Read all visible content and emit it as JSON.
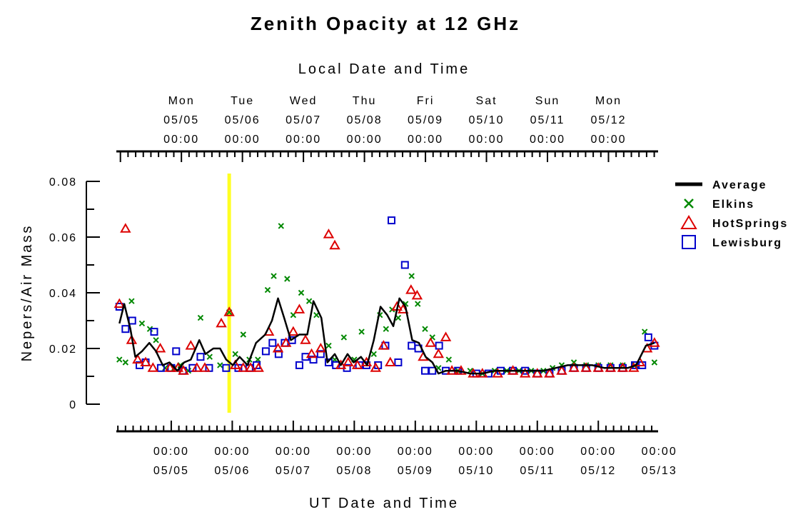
{
  "chart_data": {
    "type": "scatter",
    "title": "Zenith Opacity at 12 GHz",
    "top_axis_label": "Local Date and Time",
    "xlabel": "UT Date and Time",
    "ylabel": "Nepers/Air Mass",
    "ylim": [
      0,
      0.08
    ],
    "y_ticks": [
      "0",
      "0.02",
      "0.04",
      "0.06",
      "0.08"
    ],
    "x_range_days": [
      4.1,
      12.98
    ],
    "top_axis_ticks": [
      {
        "day": "Mon",
        "date": "05/05",
        "time": "00:00"
      },
      {
        "day": "Tue",
        "date": "05/06",
        "time": "00:00"
      },
      {
        "day": "Wed",
        "date": "05/07",
        "time": "00:00"
      },
      {
        "day": "Thu",
        "date": "05/08",
        "time": "00:00"
      },
      {
        "day": "Fri",
        "date": "05/09",
        "time": "00:00"
      },
      {
        "day": "Sat",
        "date": "05/10",
        "time": "00:00"
      },
      {
        "day": "Sun",
        "date": "05/11",
        "time": "00:00"
      },
      {
        "day": "Mon",
        "date": "05/12",
        "time": "00:00"
      }
    ],
    "bottom_axis_ticks": [
      {
        "time": "00:00",
        "date": "05/05"
      },
      {
        "time": "00:00",
        "date": "05/06"
      },
      {
        "time": "00:00",
        "date": "05/07"
      },
      {
        "time": "00:00",
        "date": "05/08"
      },
      {
        "time": "00:00",
        "date": "05/09"
      },
      {
        "time": "00:00",
        "date": "05/10"
      },
      {
        "time": "00:00",
        "date": "05/11"
      },
      {
        "time": "00:00",
        "date": "05/12"
      },
      {
        "time": "00:00",
        "date": "05/13"
      }
    ],
    "marker_line_day": 5.95,
    "marker_line_color": "#ffff22",
    "legend_position": "right",
    "series": [
      {
        "name": "Average",
        "style": "line",
        "color": "#000000",
        "points": [
          [
            4.15,
            0.029
          ],
          [
            4.23,
            0.036
          ],
          [
            4.33,
            0.027
          ],
          [
            4.41,
            0.017
          ],
          [
            4.52,
            0.019
          ],
          [
            4.64,
            0.022
          ],
          [
            4.75,
            0.019
          ],
          [
            4.86,
            0.014
          ],
          [
            4.97,
            0.015
          ],
          [
            5.1,
            0.012
          ],
          [
            5.21,
            0.015
          ],
          [
            5.32,
            0.016
          ],
          [
            5.46,
            0.023
          ],
          [
            5.56,
            0.018
          ],
          [
            5.69,
            0.02
          ],
          [
            5.8,
            0.02
          ],
          [
            5.9,
            0.016
          ],
          [
            6.01,
            0.014
          ],
          [
            6.12,
            0.017
          ],
          [
            6.25,
            0.014
          ],
          [
            6.39,
            0.022
          ],
          [
            6.54,
            0.025
          ],
          [
            6.65,
            0.03
          ],
          [
            6.75,
            0.038
          ],
          [
            6.85,
            0.031
          ],
          [
            6.96,
            0.023
          ],
          [
            7.1,
            0.025
          ],
          [
            7.23,
            0.025
          ],
          [
            7.33,
            0.037
          ],
          [
            7.46,
            0.031
          ],
          [
            7.56,
            0.015
          ],
          [
            7.68,
            0.018
          ],
          [
            7.78,
            0.014
          ],
          [
            7.89,
            0.018
          ],
          [
            7.99,
            0.015
          ],
          [
            8.11,
            0.017
          ],
          [
            8.21,
            0.014
          ],
          [
            8.32,
            0.023
          ],
          [
            8.43,
            0.035
          ],
          [
            8.54,
            0.032
          ],
          [
            8.64,
            0.028
          ],
          [
            8.74,
            0.038
          ],
          [
            8.84,
            0.035
          ],
          [
            8.95,
            0.023
          ],
          [
            9.06,
            0.022
          ],
          [
            9.17,
            0.017
          ],
          [
            9.28,
            0.015
          ],
          [
            9.38,
            0.011
          ],
          [
            9.5,
            0.012
          ],
          [
            9.7,
            0.012
          ],
          [
            9.9,
            0.011
          ],
          [
            10.1,
            0.011
          ],
          [
            10.3,
            0.012
          ],
          [
            10.5,
            0.012
          ],
          [
            10.7,
            0.012
          ],
          [
            10.9,
            0.012
          ],
          [
            11.1,
            0.012
          ],
          [
            11.3,
            0.013
          ],
          [
            11.5,
            0.014
          ],
          [
            11.7,
            0.014
          ],
          [
            11.9,
            0.014
          ],
          [
            12.1,
            0.013
          ],
          [
            12.3,
            0.013
          ],
          [
            12.48,
            0.013
          ],
          [
            12.62,
            0.014
          ],
          [
            12.78,
            0.021
          ],
          [
            12.92,
            0.022
          ]
        ]
      },
      {
        "name": "Elkins",
        "style": "x",
        "color": "#008800",
        "points": [
          [
            4.15,
            0.016
          ],
          [
            4.25,
            0.015
          ],
          [
            4.35,
            0.037
          ],
          [
            4.52,
            0.029
          ],
          [
            4.65,
            0.027
          ],
          [
            4.75,
            0.023
          ],
          [
            4.9,
            0.013
          ],
          [
            5.05,
            0.013
          ],
          [
            5.15,
            0.014
          ],
          [
            5.28,
            0.012
          ],
          [
            5.48,
            0.031
          ],
          [
            5.63,
            0.017
          ],
          [
            5.8,
            0.014
          ],
          [
            5.95,
            0.033
          ],
          [
            6.05,
            0.018
          ],
          [
            6.18,
            0.025
          ],
          [
            6.28,
            0.016
          ],
          [
            6.42,
            0.016
          ],
          [
            6.58,
            0.041
          ],
          [
            6.68,
            0.046
          ],
          [
            6.8,
            0.064
          ],
          [
            6.9,
            0.045
          ],
          [
            7.0,
            0.032
          ],
          [
            7.13,
            0.04
          ],
          [
            7.26,
            0.037
          ],
          [
            7.38,
            0.032
          ],
          [
            7.58,
            0.021
          ],
          [
            7.68,
            0.016
          ],
          [
            7.83,
            0.024
          ],
          [
            8.0,
            0.016
          ],
          [
            8.12,
            0.026
          ],
          [
            8.32,
            0.018
          ],
          [
            8.42,
            0.032
          ],
          [
            8.52,
            0.027
          ],
          [
            8.62,
            0.034
          ],
          [
            8.72,
            0.031
          ],
          [
            8.84,
            0.036
          ],
          [
            8.94,
            0.046
          ],
          [
            9.04,
            0.036
          ],
          [
            9.16,
            0.027
          ],
          [
            9.28,
            0.024
          ],
          [
            9.38,
            0.013
          ],
          [
            9.55,
            0.016
          ],
          [
            9.7,
            0.012
          ],
          [
            9.9,
            0.012
          ],
          [
            10.1,
            0.011
          ],
          [
            10.3,
            0.012
          ],
          [
            10.5,
            0.012
          ],
          [
            10.7,
            0.012
          ],
          [
            10.9,
            0.012
          ],
          [
            11.1,
            0.012
          ],
          [
            11.25,
            0.013
          ],
          [
            11.4,
            0.014
          ],
          [
            11.6,
            0.015
          ],
          [
            11.8,
            0.014
          ],
          [
            12.0,
            0.014
          ],
          [
            12.2,
            0.014
          ],
          [
            12.4,
            0.014
          ],
          [
            12.6,
            0.014
          ],
          [
            12.76,
            0.026
          ],
          [
            12.92,
            0.015
          ]
        ]
      },
      {
        "name": "HotSprings",
        "style": "triangle",
        "color": "#dd0000",
        "points": [
          [
            4.15,
            0.036
          ],
          [
            4.25,
            0.063
          ],
          [
            4.35,
            0.023
          ],
          [
            4.45,
            0.016
          ],
          [
            4.58,
            0.015
          ],
          [
            4.7,
            0.013
          ],
          [
            4.82,
            0.02
          ],
          [
            4.98,
            0.013
          ],
          [
            5.11,
            0.013
          ],
          [
            5.2,
            0.012
          ],
          [
            5.32,
            0.021
          ],
          [
            5.42,
            0.013
          ],
          [
            5.55,
            0.013
          ],
          [
            5.82,
            0.029
          ],
          [
            5.95,
            0.033
          ],
          [
            6.05,
            0.014
          ],
          [
            6.18,
            0.013
          ],
          [
            6.3,
            0.013
          ],
          [
            6.43,
            0.013
          ],
          [
            6.6,
            0.026
          ],
          [
            6.75,
            0.02
          ],
          [
            6.88,
            0.022
          ],
          [
            7.0,
            0.026
          ],
          [
            7.1,
            0.034
          ],
          [
            7.2,
            0.023
          ],
          [
            7.3,
            0.018
          ],
          [
            7.45,
            0.02
          ],
          [
            7.58,
            0.061
          ],
          [
            7.68,
            0.057
          ],
          [
            7.78,
            0.014
          ],
          [
            7.9,
            0.015
          ],
          [
            8.05,
            0.014
          ],
          [
            8.2,
            0.015
          ],
          [
            8.35,
            0.013
          ],
          [
            8.48,
            0.021
          ],
          [
            8.59,
            0.015
          ],
          [
            8.7,
            0.035
          ],
          [
            8.8,
            0.034
          ],
          [
            8.93,
            0.041
          ],
          [
            9.03,
            0.039
          ],
          [
            9.13,
            0.017
          ],
          [
            9.25,
            0.022
          ],
          [
            9.38,
            0.018
          ],
          [
            9.5,
            0.024
          ],
          [
            9.6,
            0.012
          ],
          [
            9.75,
            0.012
          ],
          [
            9.95,
            0.011
          ],
          [
            10.1,
            0.011
          ],
          [
            10.35,
            0.011
          ],
          [
            10.6,
            0.012
          ],
          [
            10.8,
            0.011
          ],
          [
            11.0,
            0.011
          ],
          [
            11.2,
            0.011
          ],
          [
            11.4,
            0.012
          ],
          [
            11.6,
            0.013
          ],
          [
            11.8,
            0.013
          ],
          [
            12.0,
            0.013
          ],
          [
            12.2,
            0.013
          ],
          [
            12.4,
            0.013
          ],
          [
            12.58,
            0.013
          ],
          [
            12.68,
            0.015
          ],
          [
            12.8,
            0.02
          ],
          [
            12.92,
            0.022
          ]
        ]
      },
      {
        "name": "Lewisburg",
        "style": "square",
        "color": "#0000cc",
        "points": [
          [
            4.15,
            0.035
          ],
          [
            4.25,
            0.027
          ],
          [
            4.36,
            0.03
          ],
          [
            4.48,
            0.014
          ],
          [
            4.58,
            0.015
          ],
          [
            4.72,
            0.026
          ],
          [
            4.83,
            0.013
          ],
          [
            5.0,
            0.013
          ],
          [
            5.08,
            0.019
          ],
          [
            5.19,
            0.012
          ],
          [
            5.35,
            0.013
          ],
          [
            5.48,
            0.017
          ],
          [
            5.62,
            0.013
          ],
          [
            5.9,
            0.013
          ],
          [
            6.1,
            0.013
          ],
          [
            6.28,
            0.013
          ],
          [
            6.4,
            0.014
          ],
          [
            6.55,
            0.019
          ],
          [
            6.66,
            0.022
          ],
          [
            6.76,
            0.018
          ],
          [
            6.86,
            0.022
          ],
          [
            6.98,
            0.023
          ],
          [
            7.1,
            0.014
          ],
          [
            7.2,
            0.017
          ],
          [
            7.33,
            0.016
          ],
          [
            7.45,
            0.018
          ],
          [
            7.58,
            0.015
          ],
          [
            7.7,
            0.014
          ],
          [
            7.88,
            0.013
          ],
          [
            8.08,
            0.014
          ],
          [
            8.2,
            0.014
          ],
          [
            8.39,
            0.014
          ],
          [
            8.51,
            0.021
          ],
          [
            8.61,
            0.066
          ],
          [
            8.72,
            0.015
          ],
          [
            8.83,
            0.05
          ],
          [
            8.94,
            0.021
          ],
          [
            9.05,
            0.02
          ],
          [
            9.16,
            0.012
          ],
          [
            9.28,
            0.012
          ],
          [
            9.39,
            0.021
          ],
          [
            9.5,
            0.012
          ],
          [
            9.7,
            0.012
          ],
          [
            10.0,
            0.011
          ],
          [
            10.2,
            0.011
          ],
          [
            10.4,
            0.012
          ],
          [
            10.6,
            0.012
          ],
          [
            10.8,
            0.012
          ],
          [
            11.0,
            0.011
          ],
          [
            11.2,
            0.011
          ],
          [
            11.4,
            0.012
          ],
          [
            11.6,
            0.013
          ],
          [
            11.8,
            0.013
          ],
          [
            12.0,
            0.013
          ],
          [
            12.2,
            0.013
          ],
          [
            12.4,
            0.013
          ],
          [
            12.6,
            0.014
          ],
          [
            12.72,
            0.014
          ],
          [
            12.82,
            0.024
          ],
          [
            12.92,
            0.021
          ]
        ]
      }
    ]
  }
}
